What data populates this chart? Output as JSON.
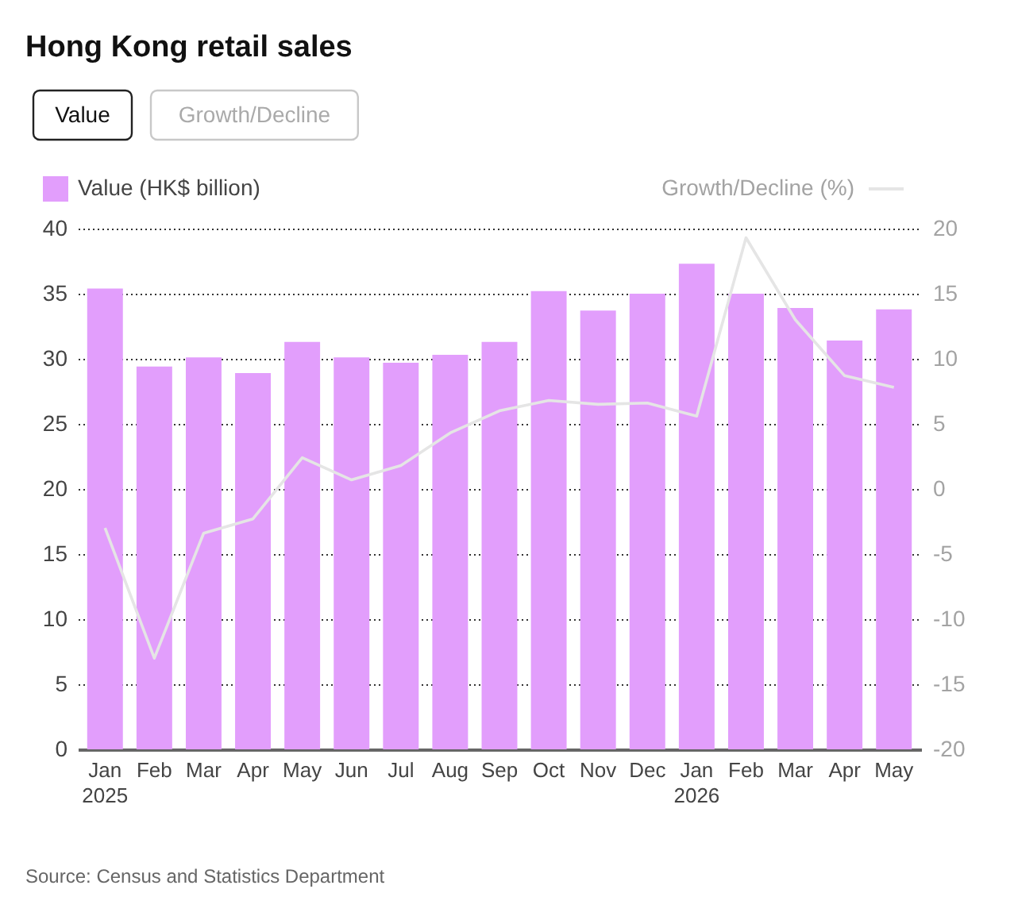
{
  "chart_data": {
    "type": "bar",
    "title": "Hong Kong retail sales",
    "categories": [
      "Jan 2025",
      "Feb",
      "Mar",
      "Apr",
      "May",
      "Jun",
      "Jul",
      "Aug",
      "Sep",
      "Oct",
      "Nov",
      "Dec",
      "Jan 2026",
      "Feb",
      "Mar",
      "Apr",
      "May"
    ],
    "series": [
      {
        "name": "Value (HK$ billion)",
        "color": "#e29efc",
        "values": [
          35.4,
          29.4,
          30.1,
          28.9,
          31.3,
          30.1,
          29.7,
          30.3,
          31.3,
          35.2,
          33.7,
          35.0,
          37.3,
          35.0,
          33.9,
          31.4,
          33.8
        ]
      },
      {
        "name": "Growth/Decline (%)",
        "type": "line",
        "axis": "y2",
        "color": "#e5e5e5",
        "values": [
          -3.0,
          -13.0,
          -3.4,
          -2.3,
          2.4,
          0.7,
          1.8,
          4.3,
          6.0,
          6.8,
          6.5,
          6.6,
          5.6,
          19.3,
          13.0,
          8.7,
          7.8
        ]
      }
    ],
    "ylim": [
      0,
      40
    ],
    "yticks": [
      0,
      5,
      10,
      15,
      20,
      25,
      30,
      35,
      40
    ],
    "y2lim": [
      -20,
      20
    ],
    "y2ticks": [
      -20,
      -15,
      -10,
      -5,
      0,
      5,
      10,
      15,
      20
    ],
    "grid": "y",
    "legend": "top",
    "marker": "none",
    "line_style": "solid",
    "annotations": [
      "Value",
      "Growth/Decline",
      "Source: Census and Statistics Department"
    ]
  }
}
